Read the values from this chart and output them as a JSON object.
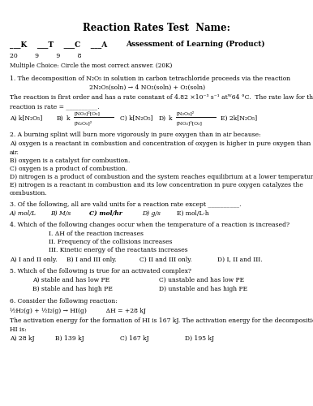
{
  "title": "Reaction Rates Test  Name:",
  "subtitle_left": "___K    ___T    ___C    ___A",
  "subtitle_right": "Assessment of Learning (Product)",
  "scores": "20         9         9         8",
  "mc_instruction": "Multiple Choice: Circle the most correct answer. (20K)",
  "q1_intro": "1. The decomposition of N₂O₅ in solution in carbon tetrachloride proceeds via the reaction",
  "q1_reaction": "2N₂O₅(soln) → 4 NO₂(soln) + O₂(soln)",
  "q1_text1": "The reaction is first order and has a rate constant of 4.82 ×10⁻³ s⁻¹ atᵂ64 °C.  The rate law for the",
  "q1_text2": "reaction is rate = __________.",
  "q2_text": "2. A burning splint will burn more vigorously in pure oxygen than in air because:",
  "q2a": "A) oxygen is a reactant in combustion and concentration of oxygen is higher in pure oxygen than is in",
  "q2a2": "air.",
  "q2b": "B) oxygen is a catalyst for combustion.",
  "q2c": "C) oxygen is a product of combustion.",
  "q2d": "D) nitrogen is a product of combustion and the system reaches equilibrium at a lower temperature",
  "q2e": "E) nitrogen is a reactant in combustion and its low concentration in pure oxygen catalyzes the",
  "q2e2": "combustion.",
  "q3_text": "3. Of the following, all are valid units for a reaction rate except __________.",
  "q4_text": "4. Which of the following changes occur when the temperature of a reaction is increased?",
  "q4_I": "I. ΔH of the reaction increases",
  "q4_II": "II. Frequency of the collisions increases",
  "q4_III": "III. Kinetic energy of the reactants increases",
  "q4_optA": "A) I and II only.",
  "q4_optB": "B) I and III only.",
  "q4_optC": "C) II and III only.",
  "q4_optD": "D) I, II and III.",
  "q5_text": "5. Which of the following is true for an activated complex?",
  "q5a": "A) stable and has low PE",
  "q5b": "B) stable and has high PE",
  "q5c": "C) unstable and has low PE",
  "q5d": "D) unstable and has high PE",
  "q6_text": "6. Consider the following reaction:",
  "q6_reaction": "½H₂(g) + ½I₂(g) → HI(g)          ΔH = +28 kJ",
  "q6_body1": "The activation energy for the formation of HI is 167 kJ. The activation energy for the decomposition of",
  "q6_body2": "HI is:",
  "q6_optA": "A) 28 kJ",
  "q6_optB": "B) 139 kJ",
  "q6_optC": "C) 167 kJ",
  "q6_optD": "D) 195 kJ",
  "bg_color": "#ffffff",
  "text_color": "#000000",
  "fs": 5.5,
  "fs_title": 8.5,
  "fs_sub": 6.5
}
